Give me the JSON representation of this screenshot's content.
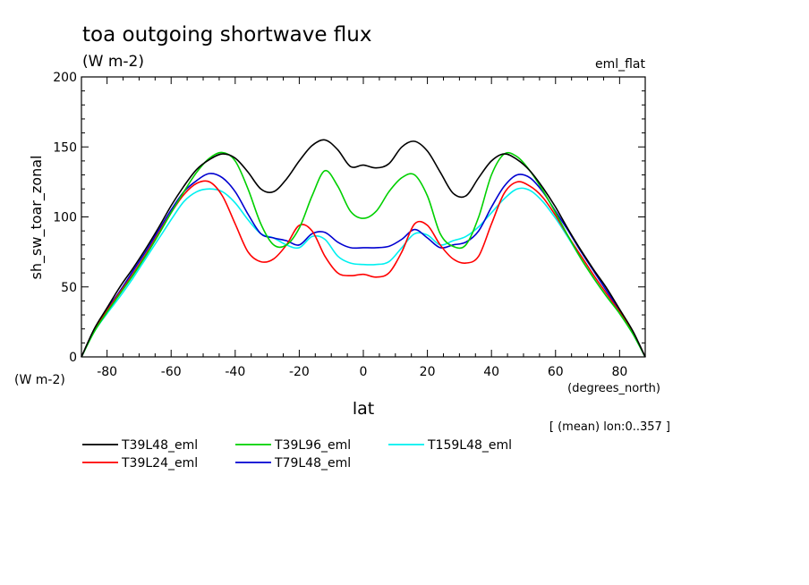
{
  "chart_data": {
    "type": "line",
    "title": "toa outgoing shortwave flux",
    "subtitle": "(W m-2)",
    "dataset_label": "eml_flat",
    "ylabel": "sh_sw_toar_zonal",
    "yunit": "(W m-2)",
    "xlabel": "lat",
    "xunit": "(degrees_north)",
    "annotation": "[ (mean) lon:0..357 ]",
    "xlim": [
      -88,
      88
    ],
    "ylim": [
      0,
      200
    ],
    "xticks": [
      -80,
      -60,
      -40,
      -20,
      0,
      20,
      40,
      60,
      80
    ],
    "yticks": [
      0,
      50,
      100,
      150,
      200
    ],
    "xtick_labels": [
      "-80",
      "-60",
      "-40",
      "-20",
      "0",
      "20",
      "40",
      "60",
      "80"
    ],
    "ytick_labels": [
      "0",
      "50",
      "100",
      "150",
      "200"
    ],
    "grid": false,
    "legend_position": "bottom",
    "x": [
      -88,
      -84,
      -80,
      -76,
      -72,
      -68,
      -64,
      -60,
      -56,
      -52,
      -48,
      -44,
      -40,
      -36,
      -32,
      -28,
      -24,
      -20,
      -16,
      -12,
      -8,
      -4,
      0,
      4,
      8,
      12,
      16,
      20,
      24,
      28,
      32,
      36,
      40,
      44,
      48,
      52,
      56,
      60,
      64,
      68,
      72,
      76,
      80,
      84,
      88
    ],
    "series": [
      {
        "name": "T39L48_eml",
        "color": "#000000",
        "values": [
          0,
          20,
          35,
          50,
          63,
          77,
          92,
          108,
          122,
          134,
          141,
          145,
          142,
          132,
          120,
          118,
          127,
          140,
          151,
          155,
          148,
          136,
          137,
          135,
          138,
          150,
          154,
          147,
          132,
          117,
          115,
          128,
          140,
          145,
          141,
          133,
          121,
          107,
          91,
          76,
          62,
          49,
          34,
          19,
          0
        ]
      },
      {
        "name": "T39L24_eml",
        "color": "#ff0000",
        "values": [
          0,
          19,
          33,
          46,
          59,
          73,
          88,
          103,
          116,
          124,
          125,
          115,
          95,
          75,
          68,
          70,
          80,
          94,
          90,
          72,
          60,
          58,
          59,
          57,
          60,
          75,
          95,
          94,
          80,
          70,
          67,
          72,
          95,
          117,
          125,
          122,
          114,
          101,
          86,
          72,
          58,
          45,
          32,
          18,
          0
        ]
      },
      {
        "name": "T39L96_eml",
        "color": "#00d000",
        "values": [
          0,
          18,
          32,
          45,
          58,
          72,
          87,
          103,
          118,
          132,
          142,
          146,
          140,
          120,
          95,
          80,
          80,
          92,
          115,
          133,
          122,
          104,
          99,
          104,
          118,
          128,
          130,
          115,
          88,
          79,
          80,
          100,
          130,
          145,
          143,
          133,
          119,
          103,
          86,
          70,
          56,
          43,
          31,
          17,
          0
        ]
      },
      {
        "name": "T79L48_eml",
        "color": "#0000d0",
        "values": [
          0,
          19,
          34,
          47,
          61,
          75,
          90,
          105,
          118,
          126,
          131,
          128,
          118,
          102,
          88,
          85,
          83,
          80,
          88,
          89,
          82,
          78,
          78,
          78,
          79,
          84,
          91,
          85,
          78,
          80,
          82,
          90,
          107,
          122,
          130,
          128,
          118,
          104,
          90,
          75,
          61,
          47,
          33,
          18,
          0
        ]
      },
      {
        "name": "T159L48_eml",
        "color": "#00f0f0",
        "values": [
          0,
          18,
          31,
          43,
          56,
          70,
          84,
          98,
          111,
          118,
          120,
          118,
          110,
          98,
          88,
          85,
          80,
          78,
          86,
          84,
          72,
          67,
          66,
          66,
          68,
          78,
          88,
          87,
          80,
          83,
          86,
          93,
          103,
          113,
          120,
          119,
          111,
          99,
          85,
          70,
          56,
          43,
          31,
          17,
          0
        ]
      }
    ]
  }
}
